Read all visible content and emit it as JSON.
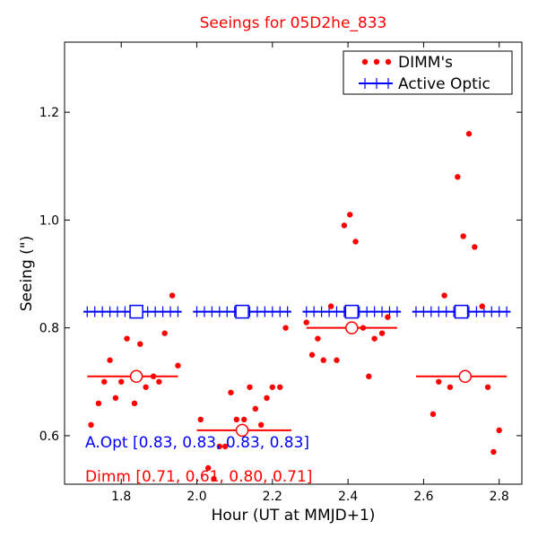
{
  "chart_data": {
    "type": "scatter",
    "title": "Seeings for 05D2he_833",
    "xlabel": "Hour (UT at MMJD+1)",
    "ylabel": "Seeing (\")",
    "xlim": [
      1.65,
      2.86
    ],
    "ylim": [
      0.51,
      1.33
    ],
    "xticks": [
      1.8,
      2.0,
      2.2,
      2.4,
      2.6,
      2.8
    ],
    "xtick_labels": [
      "1.8",
      "2.0",
      "2.2",
      "2.4",
      "2.6",
      "2.8"
    ],
    "yticks": [
      0.6,
      0.8,
      1.0,
      1.2
    ],
    "ytick_labels": [
      "0.6",
      "0.8",
      "1.0",
      "1.2"
    ],
    "grid": false,
    "legend_position": "top-right",
    "colors": {
      "dimm": "#ff0000",
      "active_optic": "#0000ff",
      "title": "#ff0000"
    },
    "series": [
      {
        "name": "DIMM's",
        "marker": "dot",
        "color": "#ff0000",
        "points": [
          [
            1.72,
            0.62
          ],
          [
            1.74,
            0.66
          ],
          [
            1.755,
            0.7
          ],
          [
            1.77,
            0.74
          ],
          [
            1.785,
            0.67
          ],
          [
            1.8,
            0.7
          ],
          [
            1.815,
            0.78
          ],
          [
            1.835,
            0.66
          ],
          [
            1.85,
            0.77
          ],
          [
            1.865,
            0.69
          ],
          [
            1.885,
            0.71
          ],
          [
            1.9,
            0.7
          ],
          [
            1.915,
            0.79
          ],
          [
            1.935,
            0.86
          ],
          [
            1.95,
            0.73
          ],
          [
            2.01,
            0.63
          ],
          [
            2.03,
            0.54
          ],
          [
            2.045,
            0.52
          ],
          [
            2.06,
            0.58
          ],
          [
            2.075,
            0.58
          ],
          [
            2.09,
            0.68
          ],
          [
            2.105,
            0.63
          ],
          [
            2.125,
            0.63
          ],
          [
            2.14,
            0.69
          ],
          [
            2.155,
            0.65
          ],
          [
            2.17,
            0.62
          ],
          [
            2.185,
            0.67
          ],
          [
            2.2,
            0.69
          ],
          [
            2.22,
            0.69
          ],
          [
            2.235,
            0.8
          ],
          [
            2.29,
            0.81
          ],
          [
            2.305,
            0.75
          ],
          [
            2.32,
            0.78
          ],
          [
            2.335,
            0.74
          ],
          [
            2.355,
            0.84
          ],
          [
            2.37,
            0.74
          ],
          [
            2.39,
            0.99
          ],
          [
            2.405,
            1.01
          ],
          [
            2.42,
            0.96
          ],
          [
            2.44,
            0.8
          ],
          [
            2.455,
            0.71
          ],
          [
            2.47,
            0.78
          ],
          [
            2.49,
            0.79
          ],
          [
            2.505,
            0.82
          ],
          [
            2.625,
            0.64
          ],
          [
            2.64,
            0.7
          ],
          [
            2.655,
            0.86
          ],
          [
            2.67,
            0.69
          ],
          [
            2.69,
            1.08
          ],
          [
            2.705,
            0.97
          ],
          [
            2.72,
            1.16
          ],
          [
            2.735,
            0.95
          ],
          [
            2.755,
            0.84
          ],
          [
            2.77,
            0.69
          ],
          [
            2.785,
            0.57
          ],
          [
            2.8,
            0.61
          ]
        ]
      },
      {
        "name": "Active Optic",
        "marker": "plus",
        "color": "#0000ff",
        "segments": [
          {
            "x_start": 1.7,
            "x_end": 1.96,
            "value": 0.83,
            "center": 1.84
          },
          {
            "x_start": 1.99,
            "x_end": 2.25,
            "value": 0.83,
            "center": 2.12
          },
          {
            "x_start": 2.28,
            "x_end": 2.54,
            "value": 0.83,
            "center": 2.41
          },
          {
            "x_start": 2.57,
            "x_end": 2.83,
            "value": 0.83,
            "center": 2.7
          }
        ]
      },
      {
        "name": "Dimm median",
        "color": "#ff0000",
        "segments": [
          {
            "x_start": 1.71,
            "x_end": 1.95,
            "value": 0.71,
            "center": 1.84
          },
          {
            "x_start": 2.0,
            "x_end": 2.25,
            "value": 0.61,
            "center": 2.12
          },
          {
            "x_start": 2.29,
            "x_end": 2.53,
            "value": 0.8,
            "center": 2.41
          },
          {
            "x_start": 2.58,
            "x_end": 2.82,
            "value": 0.71,
            "center": 2.71
          }
        ]
      }
    ],
    "legend": [
      {
        "label": "DIMM's",
        "marker": "dot",
        "color": "#ff0000"
      },
      {
        "label": "Active Optic",
        "marker": "plus",
        "color": "#0000ff"
      }
    ],
    "annotations": [
      {
        "text": "A.Opt [0.83, 0.83, 0.83, 0.83]",
        "color": "#0000ff"
      },
      {
        "text": "Dimm [0.71, 0.61, 0.80, 0.71]",
        "color": "#ff0000"
      }
    ]
  }
}
